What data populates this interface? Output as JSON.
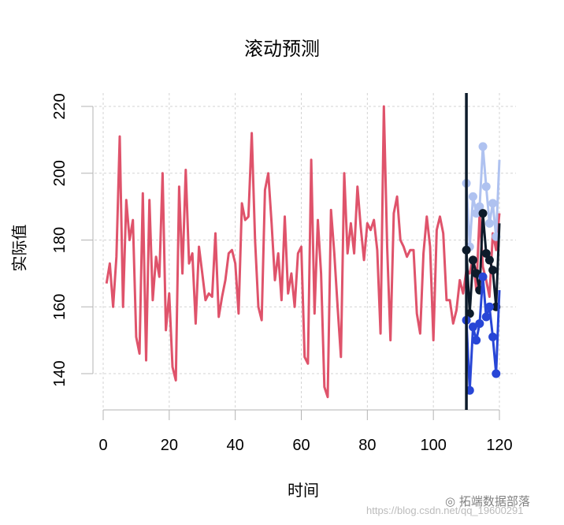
{
  "title": "滚动预测",
  "xlabel": "时间",
  "ylabel": "实际值",
  "watermark": {
    "brand": "拓端数据部落",
    "url": "https://blog.csdn.net/qq_19600291"
  },
  "colors": {
    "actual": "#DF536B",
    "upper": "#AFC2F0",
    "lower": "#2846D6",
    "mean": "#0D1B2A",
    "cutoff": "#0D1B2A",
    "grid": "#D3D3D3",
    "axis": "#B3B3B3"
  },
  "chart_data": {
    "type": "line",
    "title": "滚动预测",
    "xlabel": "时间",
    "ylabel": "实际值",
    "xlim": [
      0,
      120
    ],
    "ylim": [
      135,
      221
    ],
    "x_ticks": [
      0,
      20,
      40,
      60,
      80,
      100,
      120
    ],
    "y_ticks": [
      140,
      160,
      180,
      200,
      220
    ],
    "grid": true,
    "cutoff_x": 110,
    "series": [
      {
        "name": "actual",
        "color": "#DF536B",
        "x_start": 1,
        "values": [
          167,
          173,
          160,
          175,
          211,
          160,
          192,
          180,
          186,
          151,
          146,
          194,
          144,
          192,
          162,
          175,
          169,
          200,
          153,
          164,
          142,
          138,
          196,
          170,
          201,
          173,
          176,
          155,
          178,
          170,
          162,
          164,
          163,
          182,
          157,
          163,
          168,
          176,
          177,
          173,
          158,
          191,
          186,
          187,
          212,
          180,
          160,
          156,
          195,
          200,
          185,
          168,
          176,
          162,
          187,
          164,
          170,
          160,
          176,
          178,
          145,
          143,
          204,
          158,
          186,
          170,
          136,
          133,
          189,
          176,
          160,
          145,
          200,
          176,
          185,
          176,
          196,
          184,
          174,
          185,
          183,
          186,
          177,
          152,
          220,
          178,
          150,
          188,
          193,
          180,
          178,
          175,
          177,
          177,
          158,
          152,
          176,
          187,
          178,
          150,
          183,
          187,
          182,
          162,
          162,
          155,
          159,
          168,
          164,
          171,
          170,
          175,
          165,
          188,
          172,
          168,
          163,
          182,
          177,
          188
        ]
      },
      {
        "name": "forecast_upper",
        "color": "#AFC2F0",
        "x": [
          110,
          111,
          112,
          113,
          114,
          115,
          116,
          117,
          118,
          119,
          120
        ],
        "values": [
          197,
          178,
          193,
          188,
          190,
          208,
          196,
          185,
          191,
          181,
          204
        ]
      },
      {
        "name": "forecast_mean",
        "color": "#0D1B2A",
        "x": [
          110,
          111,
          112,
          113,
          114,
          115,
          116,
          117,
          118,
          119,
          120
        ],
        "values": [
          177,
          158,
          174,
          170,
          165,
          188,
          176,
          174,
          171,
          160,
          185
        ]
      },
      {
        "name": "forecast_lower",
        "color": "#2846D6",
        "x": [
          110,
          111,
          112,
          113,
          114,
          115,
          116,
          117,
          118,
          119,
          120
        ],
        "values": [
          156,
          135,
          154,
          150,
          155,
          169,
          157,
          160,
          151,
          140,
          165
        ]
      }
    ]
  }
}
